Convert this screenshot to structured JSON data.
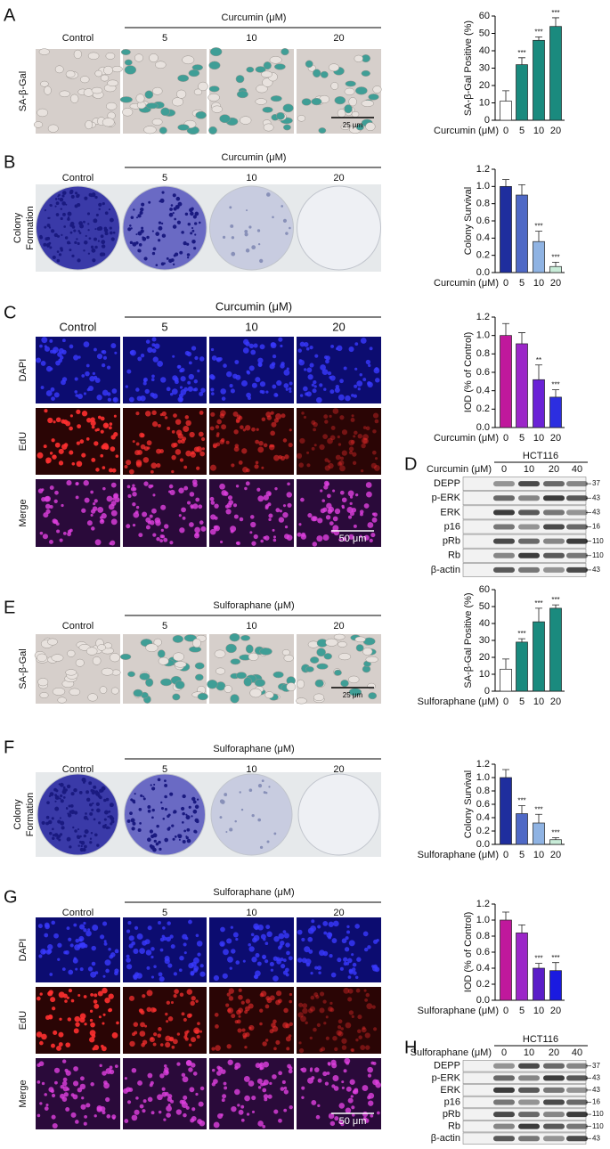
{
  "panels": [
    {
      "label": "A",
      "header": "Curcumin (μM)",
      "columns": [
        "Control",
        "5",
        "10",
        "20"
      ],
      "rows": [
        "SA-β-Gal"
      ],
      "scale_bar": "25 μm"
    },
    {
      "label": "B",
      "header": "Curcumin (μM)",
      "columns": [
        "Control",
        "5",
        "10",
        "20"
      ],
      "rows": [
        "Colony Formation"
      ]
    },
    {
      "label": "C",
      "header": "Curcumin (μM)",
      "columns": [
        "Control",
        "5",
        "10",
        "20"
      ],
      "rows": [
        "DAPI",
        "EdU",
        "Merge"
      ],
      "scale_bar": "50 μm"
    },
    {
      "label": "E",
      "header": "Sulforaphane (μM)",
      "columns": [
        "Control",
        "5",
        "10",
        "20"
      ],
      "rows": [
        "SA-β-Gal"
      ],
      "scale_bar": "25 μm"
    },
    {
      "label": "F",
      "header": "Sulforaphane (μM)",
      "columns": [
        "Control",
        "5",
        "10",
        "20"
      ],
      "rows": [
        "Colony Formation"
      ]
    },
    {
      "label": "G",
      "header": "Sulforaphane (μM)",
      "columns": [
        "Control",
        "5",
        "10",
        "20"
      ],
      "rows": [
        "DAPI",
        "EdU",
        "Merge"
      ],
      "scale_bar": "50 μm"
    }
  ],
  "blots": [
    {
      "label": "D",
      "cell_line": "HCT116",
      "treatment": "Curcumin (μM)",
      "lanes": [
        "0",
        "10",
        "20",
        "40"
      ],
      "proteins": [
        "DEPP",
        "p-ERK",
        "ERK",
        "p16",
        "pRb",
        "Rb",
        "β-actin"
      ],
      "markers": [
        37,
        43,
        43,
        16,
        110,
        110,
        43
      ]
    },
    {
      "label": "H",
      "cell_line": "HCT116",
      "treatment": "Sulforaphane (μM)",
      "lanes": [
        "0",
        "10",
        "20",
        "40"
      ],
      "proteins": [
        "DEPP",
        "p-ERK",
        "ERK",
        "p16",
        "pRb",
        "Rb",
        "β-actin"
      ],
      "markers": [
        37,
        43,
        43,
        16,
        110,
        110,
        43
      ]
    }
  ],
  "chart_data": [
    {
      "type": "bar",
      "ylabel": "SA-β-Gal Positive (%)",
      "xlabel": "Curcumin (μM)",
      "categories": [
        "0",
        "5",
        "10",
        "20"
      ],
      "values": [
        11,
        32,
        46,
        54
      ],
      "errors": [
        6,
        4,
        2,
        5
      ],
      "colors": [
        "#ffffff",
        "#1a8a7e",
        "#1a8a7e",
        "#1a8a7e"
      ],
      "annotations": [
        null,
        "***",
        "***",
        "***"
      ],
      "ylim": [
        0,
        60
      ],
      "yticks": [
        0,
        10,
        20,
        30,
        40,
        50,
        60
      ]
    },
    {
      "type": "bar",
      "ylabel": "Colony Survival",
      "xlabel": "Curcumin (μM)",
      "categories": [
        "0",
        "5",
        "10",
        "20"
      ],
      "values": [
        1.0,
        0.9,
        0.36,
        0.07
      ],
      "errors": [
        0.08,
        0.12,
        0.12,
        0.05
      ],
      "colors": [
        "#1f2e9e",
        "#4f69c6",
        "#8fb3e3",
        "#c8ecd8"
      ],
      "annotations": [
        null,
        null,
        "***",
        "***"
      ],
      "ylim": [
        0,
        1.2
      ],
      "yticks": [
        {
          "value": 0,
          "label": "0.0"
        },
        0.2,
        0.4,
        0.6,
        0.8,
        {
          "value": 1,
          "label": "1.0"
        },
        1.2
      ]
    },
    {
      "type": "bar",
      "ylabel": "IOD (% of Control)",
      "xlabel": "Curcumin (μM)",
      "categories": [
        "0",
        "5",
        "10",
        "20"
      ],
      "values": [
        1.0,
        0.91,
        0.52,
        0.33
      ],
      "errors": [
        0.13,
        0.12,
        0.16,
        0.08
      ],
      "colors": [
        "#c0189c",
        "#9b27c8",
        "#6a22d6",
        "#2c2ee0"
      ],
      "annotations": [
        null,
        null,
        "**",
        "***"
      ],
      "ylim": [
        0,
        1.2
      ],
      "yticks": [
        {
          "value": 0,
          "label": "0.0"
        },
        0.2,
        0.4,
        0.6,
        0.8,
        {
          "value": 1,
          "label": "1.0"
        },
        1.2
      ]
    },
    {
      "type": "bar",
      "ylabel": "SA-β-Gal Positive (%)",
      "xlabel": "Sulforaphane (μM)",
      "categories": [
        "0",
        "5",
        "10",
        "20"
      ],
      "values": [
        13,
        29,
        41,
        49
      ],
      "errors": [
        6,
        2,
        8,
        2
      ],
      "colors": [
        "#ffffff",
        "#1a8a7e",
        "#1a8a7e",
        "#1a8a7e"
      ],
      "annotations": [
        null,
        "***",
        "***",
        "***"
      ],
      "ylim": [
        0,
        60
      ],
      "yticks": [
        0,
        10,
        20,
        30,
        40,
        50,
        60
      ]
    },
    {
      "type": "bar",
      "ylabel": "Colony Survival",
      "xlabel": "Sulforaphane (μM)",
      "categories": [
        "0",
        "5",
        "10",
        "20"
      ],
      "values": [
        1.0,
        0.46,
        0.32,
        0.07
      ],
      "errors": [
        0.12,
        0.12,
        0.13,
        0.03
      ],
      "colors": [
        "#1f2e9e",
        "#4f69c6",
        "#8fb3e3",
        "#c8ecd8"
      ],
      "annotations": [
        null,
        "***",
        "***",
        "***"
      ],
      "ylim": [
        0,
        1.2
      ],
      "yticks": [
        {
          "value": 0,
          "label": "0.0"
        },
        0.2,
        0.4,
        0.6,
        0.8,
        {
          "value": 1,
          "label": "1.0"
        },
        1.2
      ]
    },
    {
      "type": "bar",
      "ylabel": "IOD (% of Control)",
      "xlabel": "Sulforaphane (μM)",
      "categories": [
        "0",
        "5",
        "10",
        "20"
      ],
      "values": [
        1.0,
        0.84,
        0.4,
        0.37
      ],
      "errors": [
        0.1,
        0.1,
        0.06,
        0.1
      ],
      "colors": [
        "#c0189c",
        "#9b27c8",
        "#5a1dc8",
        "#1a1ae0"
      ],
      "annotations": [
        null,
        null,
        "***",
        "***"
      ],
      "ylim": [
        0,
        1.2
      ],
      "yticks": [
        {
          "value": 0,
          "label": "0.0"
        },
        0.2,
        0.4,
        0.6,
        0.8,
        {
          "value": 1,
          "label": "1.0"
        },
        1.2
      ]
    }
  ]
}
